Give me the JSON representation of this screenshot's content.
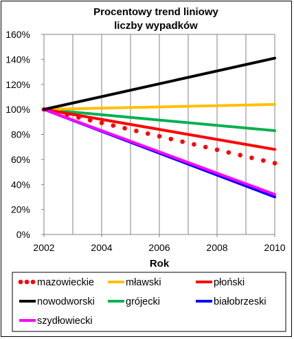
{
  "chart_data": {
    "type": "line",
    "title": [
      "Procentowy trend liniowy",
      "liczby wypadków"
    ],
    "xlabel": "Rok",
    "ylabel": "",
    "xlim": [
      2002,
      2010
    ],
    "ylim": [
      0,
      160
    ],
    "x_ticks": [
      2002,
      2004,
      2006,
      2008,
      2010
    ],
    "y_ticks": [
      0,
      20,
      40,
      60,
      80,
      100,
      120,
      140,
      160
    ],
    "y_tick_labels": [
      "0%",
      "20%",
      "40%",
      "60%",
      "80%",
      "100%",
      "120%",
      "140%",
      "160%"
    ],
    "grid": "vertical",
    "legend_position": "bottom",
    "x": [
      2002,
      2010
    ],
    "series": [
      {
        "name": "mazowieckie",
        "color": "#ff0000",
        "style": "dotted",
        "values": [
          100,
          57
        ]
      },
      {
        "name": "mławski",
        "color": "#ffc000",
        "style": "solid",
        "values": [
          100,
          104
        ]
      },
      {
        "name": "płoński",
        "color": "#ff0000",
        "style": "solid",
        "values": [
          100,
          68
        ]
      },
      {
        "name": "nowodworski",
        "color": "#000000",
        "style": "solid",
        "values": [
          100,
          141
        ]
      },
      {
        "name": "grójecki",
        "color": "#00b050",
        "style": "solid",
        "values": [
          100,
          83
        ]
      },
      {
        "name": "białobrzeski",
        "color": "#0000ff",
        "style": "solid",
        "values": [
          100,
          30
        ]
      },
      {
        "name": "szydłowiecki",
        "color": "#ff00ff",
        "style": "solid",
        "values": [
          100,
          32
        ]
      }
    ]
  }
}
